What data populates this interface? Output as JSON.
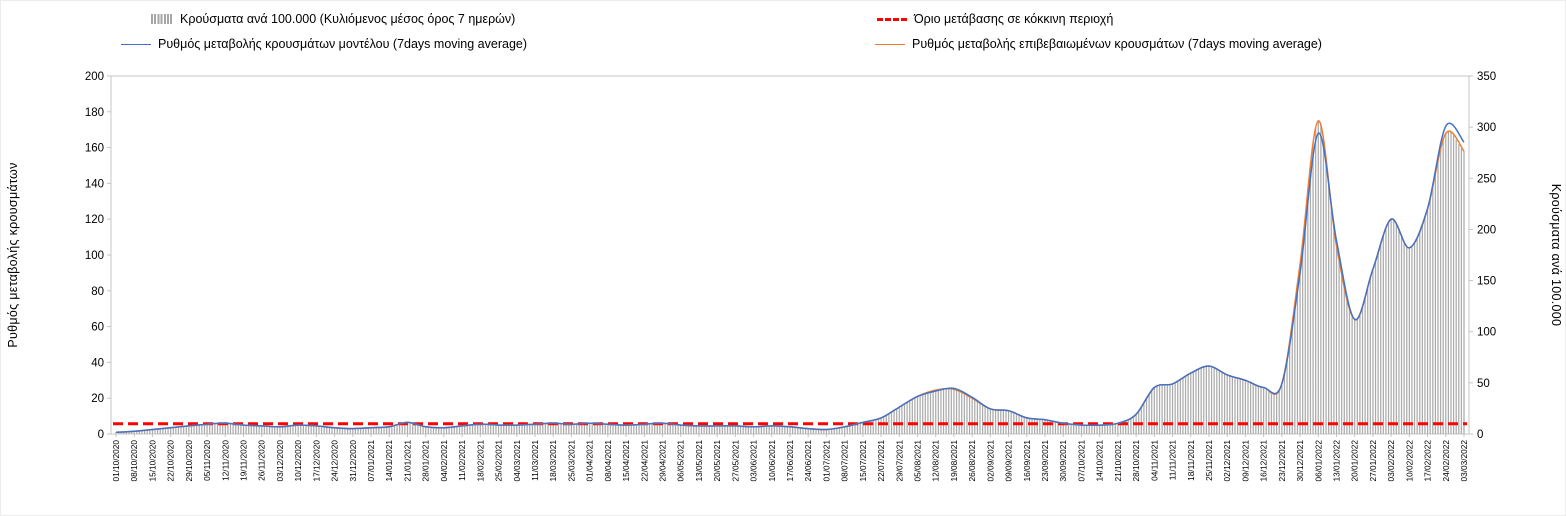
{
  "legend": {
    "cases_label": "Κρούσματα ανά 100.000 (Κυλιόμενος μέσος όρος 7 ημερών)",
    "threshold_label": "Όριο μετάβασης σε κόκκινη περιοχή",
    "model_label": "Ρυθμός μεταβολής κρουσμάτων μοντέλου (7days moving average)",
    "confirmed_label": "Ρυθμός μεταβολής επιβεβαιωμένων κρουσμάτων (7days moving average)"
  },
  "axes": {
    "left_title": "Ρυθμός μεταβολής κρουσμάτων",
    "right_title": "Κρούσματα ανά 100.000",
    "left_ticks": [
      0,
      20,
      40,
      60,
      80,
      100,
      120,
      140,
      160,
      180,
      200
    ],
    "right_ticks": [
      0,
      50,
      100,
      150,
      200,
      250,
      300,
      350
    ]
  },
  "colors": {
    "bars": "#ababab",
    "threshold": "#fe0000",
    "model": "#4472c4",
    "confirmed": "#ed7d31",
    "axis": "#c6c6c6",
    "text": "#000000"
  },
  "chart_data": {
    "type": "combo",
    "grid": false,
    "legend_position": "top",
    "left_ylim": [
      0,
      200
    ],
    "right_ylim": [
      0,
      350
    ],
    "x_tick_labels": [
      "01/10/2020",
      "08/10/2020",
      "15/10/2020",
      "22/10/2020",
      "29/10/2020",
      "05/11/2020",
      "12/11/2020",
      "19/11/2020",
      "26/11/2020",
      "03/12/2020",
      "10/12/2020",
      "17/12/2020",
      "24/12/2020",
      "31/12/2020",
      "07/01/2021",
      "14/01/2021",
      "21/01/2021",
      "28/01/2021",
      "04/02/2021",
      "11/02/2021",
      "18/02/2021",
      "25/02/2021",
      "04/03/2021",
      "11/03/2021",
      "18/03/2021",
      "25/03/2021",
      "01/04/2021",
      "08/04/2021",
      "15/04/2021",
      "22/04/2021",
      "29/04/2021",
      "06/05/2021",
      "13/05/2021",
      "20/05/2021",
      "27/05/2021",
      "03/06/2021",
      "10/06/2021",
      "17/06/2021",
      "24/06/2021",
      "01/07/2021",
      "08/07/2021",
      "15/07/2021",
      "22/07/2021",
      "29/07/2021",
      "05/08/2021",
      "12/08/2021",
      "19/08/2021",
      "26/08/2021",
      "02/09/2021",
      "09/09/2021",
      "16/09/2021",
      "23/09/2021",
      "30/09/2021",
      "07/10/2021",
      "14/10/2021",
      "21/10/2021",
      "28/10/2021",
      "04/11/2021",
      "11/11/2021",
      "18/11/2021",
      "25/11/2021",
      "02/12/2021",
      "09/12/2021",
      "16/12/2021",
      "23/12/2021",
      "30/12/2021",
      "06/01/2022",
      "13/01/2022",
      "20/01/2022",
      "27/01/2022",
      "03/02/2022",
      "10/02/2022",
      "17/02/2022",
      "24/02/2022",
      "03/03/2022"
    ],
    "series": [
      {
        "name": "cases_per_100k",
        "type": "bar",
        "axis": "right",
        "color": "#ababab",
        "values": [
          2,
          3,
          4,
          6,
          8,
          10,
          11,
          9,
          8,
          7,
          9,
          8,
          6,
          5,
          6,
          7,
          11,
          7,
          6,
          8,
          10,
          9,
          9,
          10,
          11,
          10,
          11,
          10,
          9,
          10,
          11,
          9,
          8,
          8,
          8,
          7,
          8,
          7,
          5,
          4,
          7,
          11,
          16,
          26,
          37,
          43,
          44,
          35,
          25,
          23,
          16,
          14,
          11,
          9,
          9,
          11,
          19,
          46,
          49,
          60,
          67,
          58,
          53,
          46,
          49,
          166,
          306,
          184,
          112,
          161,
          210,
          182,
          221,
          294,
          277
        ]
      },
      {
        "name": "model_rate",
        "type": "line",
        "axis": "left",
        "color": "#4472c4",
        "values": [
          1,
          1.5,
          2.5,
          3.5,
          4.5,
          5.5,
          6,
          5,
          4.5,
          4,
          5,
          4.5,
          3.5,
          3,
          3.5,
          4,
          6.5,
          4,
          3.5,
          4.5,
          5.5,
          5,
          5,
          5.5,
          6,
          5.5,
          6,
          5.5,
          5,
          5.5,
          6,
          5,
          4.5,
          4.5,
          4.5,
          4,
          4.5,
          4,
          3,
          2.5,
          4,
          6.5,
          9,
          15,
          21,
          24,
          25.5,
          20.5,
          14,
          13,
          9,
          8,
          6,
          5,
          5,
          6,
          11,
          26,
          28,
          34,
          38,
          33,
          30,
          26,
          28,
          90,
          168,
          108,
          64,
          92,
          120,
          104,
          126,
          172,
          163
        ]
      },
      {
        "name": "confirmed_rate",
        "type": "line",
        "axis": "left",
        "color": "#ed7d31",
        "values": [
          1,
          1.5,
          2.5,
          3.5,
          4.5,
          5.5,
          6,
          5,
          4.5,
          4,
          5,
          4.5,
          3.5,
          3,
          3.5,
          4,
          6.5,
          4,
          3.5,
          4.5,
          5.5,
          5,
          5,
          5.5,
          6,
          5.5,
          6,
          5.5,
          5,
          5.5,
          6,
          5,
          4.5,
          4.5,
          4.5,
          4,
          4.5,
          4,
          3,
          2.5,
          4,
          6.5,
          9,
          15,
          21,
          24.5,
          25,
          20,
          14,
          13,
          9,
          8,
          6,
          5,
          5,
          6,
          11,
          26,
          28,
          34,
          38,
          33,
          30,
          26,
          28,
          95,
          175,
          105,
          64,
          92,
          120,
          104,
          126,
          168,
          158
        ]
      },
      {
        "name": "red_zone_threshold",
        "type": "threshold",
        "axis": "right",
        "color": "#fe0000",
        "value": 10
      }
    ]
  }
}
